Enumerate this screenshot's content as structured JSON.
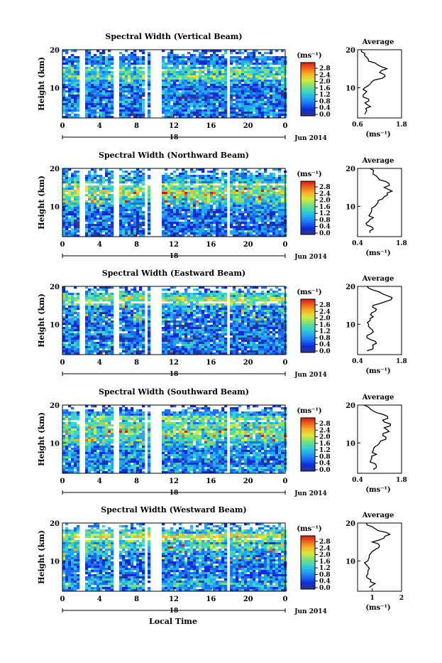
{
  "figure": {
    "x_axis_label": "Local Time",
    "date_label": "Jun 2014",
    "x_ticks": [
      "0",
      "4",
      "8",
      "12",
      "16",
      "20",
      "0"
    ],
    "day_label": "18",
    "colorbar": {
      "unit": "(ms⁻¹)",
      "ticks": [
        "0.0",
        "0.4",
        "0.8",
        "1.2",
        "1.6",
        "2.0",
        "2.4",
        "2.8"
      ],
      "colors": [
        "#34368a",
        "#0d2bd6",
        "#1b6cf5",
        "#22a8f0",
        "#39d3c8",
        "#7be07a",
        "#d6ea3a",
        "#f7b52a",
        "#f0651e",
        "#d01b1b"
      ]
    },
    "avg_title": "Average",
    "avg_xlabel": "(ms⁻¹)"
  },
  "chart_data": [
    {
      "type": "heatmap",
      "title": "Spectral Width (Vertical Beam)",
      "ylabel": "Height (km)",
      "yticks": [
        "10",
        "20"
      ],
      "avg_xticks": [
        "0.6",
        "1.8"
      ],
      "avg_xlim": [
        0.6,
        1.8
      ],
      "avg_profile": [
        [
          0.8,
          3
        ],
        [
          0.85,
          4
        ],
        [
          0.95,
          5
        ],
        [
          0.8,
          6
        ],
        [
          0.9,
          7
        ],
        [
          0.75,
          8
        ],
        [
          0.85,
          9
        ],
        [
          0.8,
          10
        ],
        [
          0.95,
          11
        ],
        [
          1.05,
          12
        ],
        [
          1.35,
          13
        ],
        [
          1.2,
          14
        ],
        [
          1.4,
          15
        ],
        [
          1.15,
          16
        ],
        [
          0.9,
          17
        ],
        [
          0.85,
          18
        ],
        [
          0.8,
          19
        ],
        [
          0.7,
          20
        ]
      ],
      "gaps_hours": [
        [
          1.8,
          2.2
        ],
        [
          5.5,
          6.0
        ],
        [
          8.0,
          8.2
        ],
        [
          8.6,
          8.9
        ],
        [
          9.4,
          10.6
        ],
        [
          17.6,
          17.9
        ]
      ]
    },
    {
      "type": "heatmap",
      "title": "Spectral Width (Northward Beam)",
      "ylabel": "Height (km)",
      "yticks": [
        "10",
        "20"
      ],
      "avg_xticks": [
        "0.4",
        "1.8"
      ],
      "avg_xlim": [
        0.4,
        1.8
      ],
      "avg_profile": [
        [
          0.8,
          3
        ],
        [
          0.9,
          4
        ],
        [
          0.7,
          5
        ],
        [
          0.75,
          6
        ],
        [
          0.9,
          7
        ],
        [
          0.8,
          8
        ],
        [
          0.85,
          9
        ],
        [
          0.95,
          10
        ],
        [
          1.05,
          11
        ],
        [
          1.2,
          12
        ],
        [
          1.35,
          13
        ],
        [
          1.5,
          14
        ],
        [
          1.25,
          15
        ],
        [
          1.4,
          16
        ],
        [
          1.1,
          17
        ],
        [
          1.0,
          18
        ],
        [
          0.9,
          19
        ],
        [
          0.8,
          20
        ]
      ],
      "gaps_hours": [
        [
          1.8,
          2.2
        ],
        [
          5.5,
          6.0
        ],
        [
          8.0,
          8.2
        ],
        [
          8.6,
          8.9
        ],
        [
          9.4,
          10.6
        ],
        [
          17.6,
          17.9
        ]
      ]
    },
    {
      "type": "heatmap",
      "title": "Spectral Width (Eastward Beam)",
      "ylabel": "Height (km)",
      "yticks": [
        "10",
        "20"
      ],
      "avg_xticks": [
        "0.4",
        "1.8"
      ],
      "avg_xlim": [
        0.4,
        1.8
      ],
      "avg_profile": [
        [
          0.7,
          3
        ],
        [
          0.9,
          4
        ],
        [
          1.0,
          5
        ],
        [
          0.8,
          6
        ],
        [
          0.7,
          7
        ],
        [
          0.9,
          8
        ],
        [
          0.8,
          9
        ],
        [
          0.75,
          10
        ],
        [
          0.8,
          11
        ],
        [
          0.9,
          12
        ],
        [
          0.85,
          13
        ],
        [
          1.0,
          14
        ],
        [
          0.9,
          15
        ],
        [
          1.3,
          16
        ],
        [
          1.5,
          17
        ],
        [
          1.2,
          18
        ],
        [
          0.9,
          19
        ],
        [
          0.7,
          20
        ]
      ],
      "gaps_hours": [
        [
          1.8,
          2.2
        ],
        [
          5.5,
          6.0
        ],
        [
          8.0,
          8.2
        ],
        [
          8.6,
          8.9
        ],
        [
          9.4,
          10.6
        ],
        [
          17.6,
          17.9
        ]
      ]
    },
    {
      "type": "heatmap",
      "title": "Spectral Width (Southward Beam)",
      "ylabel": "Height (km)",
      "yticks": [
        "10",
        "20"
      ],
      "avg_xticks": [
        "0.4",
        "1.8"
      ],
      "avg_xlim": [
        0.4,
        1.8
      ],
      "avg_profile": [
        [
          0.9,
          3
        ],
        [
          1.0,
          4
        ],
        [
          0.8,
          5
        ],
        [
          0.85,
          6
        ],
        [
          1.0,
          7
        ],
        [
          0.9,
          8
        ],
        [
          0.95,
          9
        ],
        [
          1.1,
          10
        ],
        [
          1.3,
          11
        ],
        [
          1.2,
          12
        ],
        [
          1.4,
          13
        ],
        [
          1.25,
          14
        ],
        [
          1.45,
          15
        ],
        [
          1.2,
          16
        ],
        [
          1.35,
          17
        ],
        [
          1.0,
          18
        ],
        [
          0.8,
          19
        ],
        [
          0.6,
          20
        ]
      ],
      "gaps_hours": [
        [
          1.8,
          2.2
        ],
        [
          5.5,
          6.0
        ],
        [
          8.0,
          8.2
        ],
        [
          8.6,
          8.9
        ],
        [
          9.4,
          10.6
        ],
        [
          17.6,
          17.9
        ]
      ]
    },
    {
      "type": "heatmap",
      "title": "Spectral Width (Westward Beam)",
      "ylabel": "Height (km)",
      "yticks": [
        "10",
        "20"
      ],
      "avg_xticks": [
        "1",
        "2"
      ],
      "avg_xlim": [
        0.5,
        2.0
      ],
      "avg_profile": [
        [
          0.9,
          3
        ],
        [
          1.1,
          4
        ],
        [
          0.95,
          5
        ],
        [
          0.8,
          6
        ],
        [
          0.85,
          7
        ],
        [
          0.9,
          8
        ],
        [
          0.8,
          9
        ],
        [
          0.85,
          10
        ],
        [
          0.9,
          11
        ],
        [
          0.95,
          12
        ],
        [
          1.1,
          13
        ],
        [
          1.25,
          14
        ],
        [
          1.0,
          15
        ],
        [
          1.4,
          16
        ],
        [
          1.6,
          17
        ],
        [
          1.2,
          18
        ],
        [
          1.0,
          19
        ],
        [
          0.8,
          20
        ]
      ],
      "gaps_hours": [
        [
          1.8,
          2.2
        ],
        [
          5.5,
          6.0
        ],
        [
          8.0,
          8.2
        ],
        [
          8.6,
          8.9
        ],
        [
          9.4,
          10.6
        ],
        [
          17.6,
          17.9
        ]
      ]
    }
  ]
}
